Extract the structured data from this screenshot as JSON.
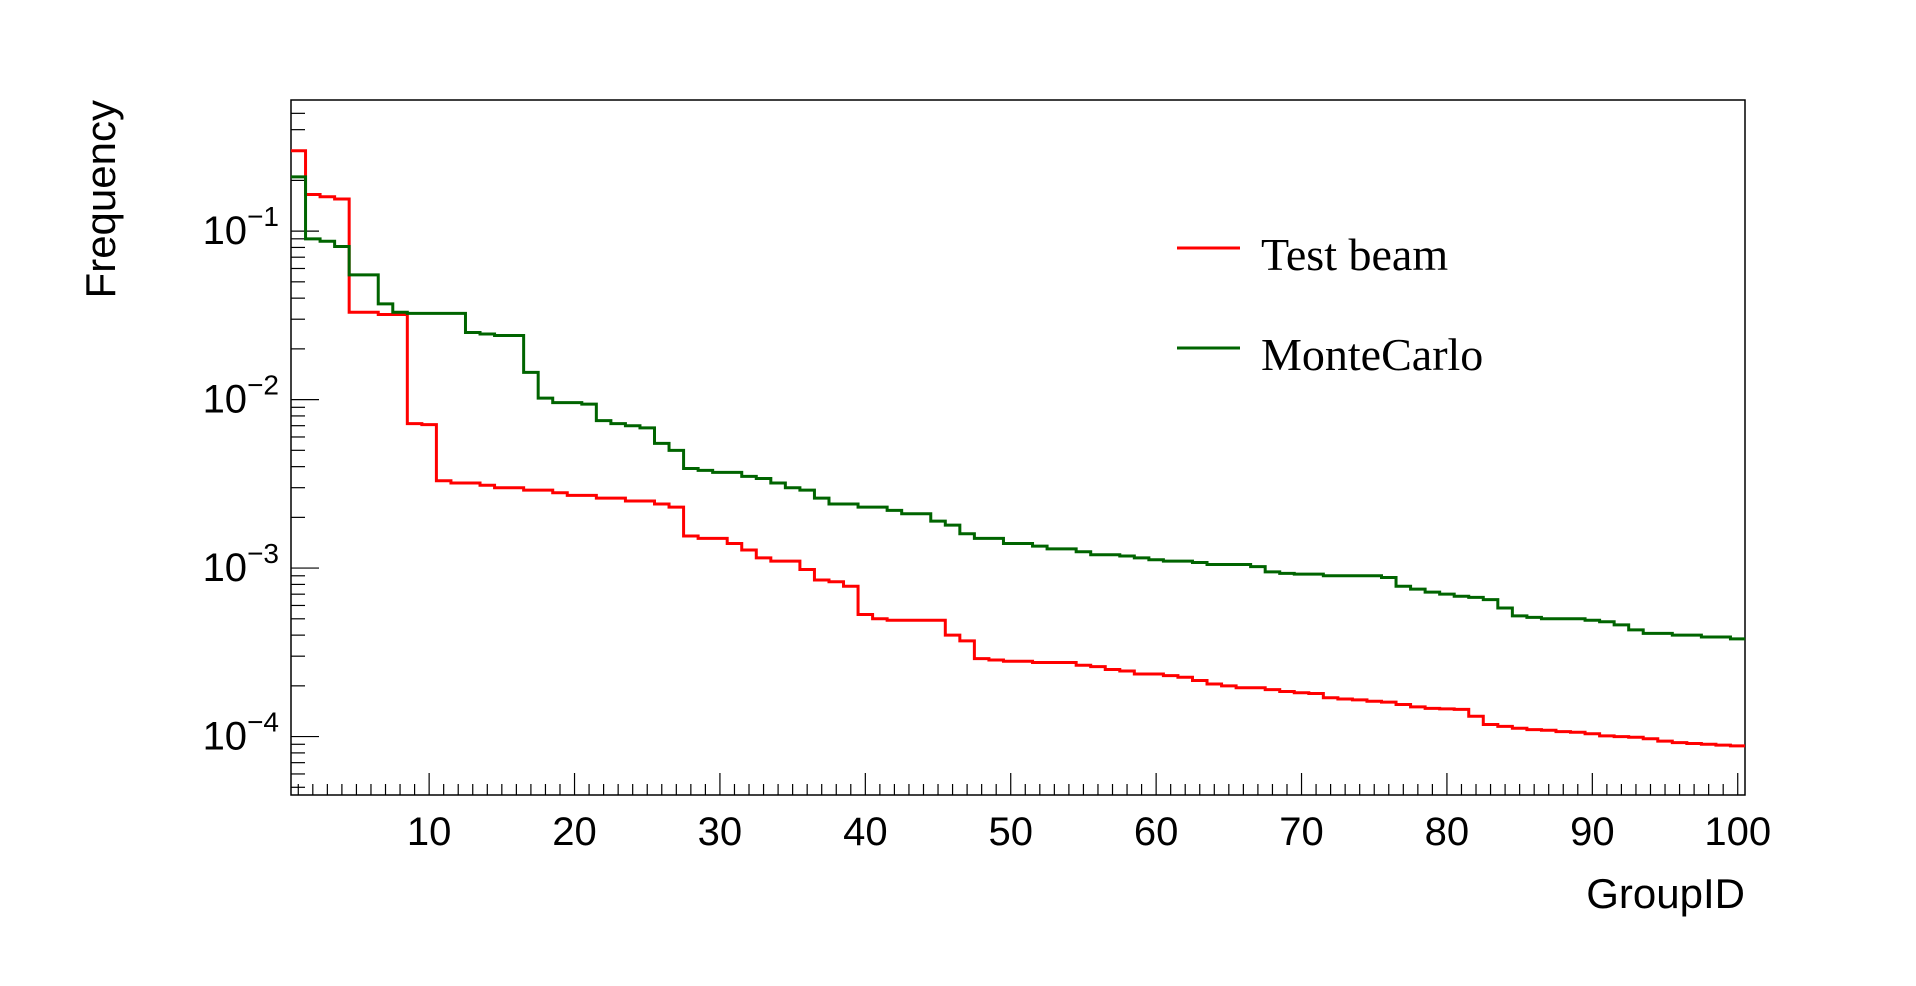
{
  "chart_data": {
    "type": "line",
    "style": "step-histogram",
    "xlabel": "GroupID",
    "ylabel": "Frequency",
    "title": "",
    "xlim": [
      0.5,
      100.5
    ],
    "ylim": [
      4.5e-05,
      0.6
    ],
    "yscale": "log",
    "grid": false,
    "legend_position": "top-right",
    "x_ticks": [
      10,
      20,
      30,
      40,
      50,
      60,
      70,
      80,
      90,
      100
    ],
    "x_tick_labels": [
      "10",
      "20",
      "30",
      "40",
      "50",
      "60",
      "70",
      "80",
      "90",
      "100"
    ],
    "y_ticks": [
      0.1,
      0.01,
      0.001,
      0.0001
    ],
    "y_tick_labels": [
      {
        "base": "10",
        "exp": "−1"
      },
      {
        "base": "10",
        "exp": "−2"
      },
      {
        "base": "10",
        "exp": "−3"
      },
      {
        "base": "10",
        "exp": "−4"
      }
    ],
    "x": [
      1,
      2,
      3,
      4,
      5,
      6,
      7,
      8,
      9,
      10,
      11,
      12,
      13,
      14,
      15,
      16,
      17,
      18,
      19,
      20,
      21,
      22,
      23,
      24,
      25,
      26,
      27,
      28,
      29,
      30,
      31,
      32,
      33,
      34,
      35,
      36,
      37,
      38,
      39,
      40,
      41,
      42,
      43,
      44,
      45,
      46,
      47,
      48,
      49,
      50,
      51,
      52,
      53,
      54,
      55,
      56,
      57,
      58,
      59,
      60,
      61,
      62,
      63,
      64,
      65,
      66,
      67,
      68,
      69,
      70,
      71,
      72,
      73,
      74,
      75,
      76,
      77,
      78,
      79,
      80,
      81,
      82,
      83,
      84,
      85,
      86,
      87,
      88,
      89,
      90,
      91,
      92,
      93,
      94,
      95,
      96,
      97,
      98,
      99,
      100
    ],
    "series": [
      {
        "name": "Test beam",
        "color": "#ff0000",
        "values": [
          0.3,
          0.165,
          0.16,
          0.155,
          0.033,
          0.033,
          0.032,
          0.032,
          0.0072,
          0.0071,
          0.0033,
          0.0032,
          0.0032,
          0.0031,
          0.003,
          0.003,
          0.0029,
          0.0029,
          0.0028,
          0.0027,
          0.0027,
          0.0026,
          0.0026,
          0.0025,
          0.0025,
          0.0024,
          0.0023,
          0.00155,
          0.0015,
          0.0015,
          0.0014,
          0.00128,
          0.00115,
          0.0011,
          0.0011,
          0.00098,
          0.00085,
          0.00083,
          0.00078,
          0.00053,
          0.0005,
          0.00049,
          0.00049,
          0.00049,
          0.00049,
          0.0004,
          0.00037,
          0.00029,
          0.000285,
          0.00028,
          0.00028,
          0.000275,
          0.000275,
          0.000275,
          0.000265,
          0.00026,
          0.00025,
          0.000245,
          0.000235,
          0.000235,
          0.00023,
          0.000225,
          0.000215,
          0.000205,
          0.0002,
          0.000195,
          0.000195,
          0.00019,
          0.000185,
          0.000182,
          0.00018,
          0.00017,
          0.000167,
          0.000165,
          0.000162,
          0.00016,
          0.000155,
          0.00015,
          0.000147,
          0.000146,
          0.000145,
          0.000132,
          0.000118,
          0.000115,
          0.000112,
          0.00011,
          0.000109,
          0.000107,
          0.000106,
          0.000104,
          0.000101,
          0.0001,
          9.9e-05,
          9.7e-05,
          9.4e-05,
          9.2e-05,
          9.1e-05,
          9e-05,
          8.9e-05,
          8.8e-05
        ]
      },
      {
        "name": "MonteCarlo",
        "color": "#006400",
        "values": [
          0.21,
          0.09,
          0.087,
          0.081,
          0.055,
          0.055,
          0.037,
          0.033,
          0.0325,
          0.0325,
          0.0325,
          0.0325,
          0.025,
          0.0245,
          0.024,
          0.024,
          0.0145,
          0.0102,
          0.0096,
          0.0096,
          0.0094,
          0.0075,
          0.0072,
          0.007,
          0.0068,
          0.0055,
          0.005,
          0.0039,
          0.0038,
          0.0037,
          0.0037,
          0.0035,
          0.0034,
          0.0032,
          0.003,
          0.0029,
          0.0026,
          0.0024,
          0.0024,
          0.0023,
          0.0023,
          0.0022,
          0.0021,
          0.0021,
          0.0019,
          0.0018,
          0.0016,
          0.0015,
          0.0015,
          0.0014,
          0.0014,
          0.00135,
          0.0013,
          0.0013,
          0.00125,
          0.0012,
          0.0012,
          0.00118,
          0.00115,
          0.00112,
          0.0011,
          0.0011,
          0.00108,
          0.00105,
          0.00105,
          0.00105,
          0.00102,
          0.00095,
          0.00093,
          0.00092,
          0.00092,
          0.0009,
          0.0009,
          0.0009,
          0.0009,
          0.00088,
          0.00078,
          0.00075,
          0.00072,
          0.0007,
          0.00068,
          0.00067,
          0.00065,
          0.00058,
          0.00052,
          0.00051,
          0.0005,
          0.0005,
          0.0005,
          0.00049,
          0.00048,
          0.00046,
          0.00043,
          0.00041,
          0.00041,
          0.0004,
          0.0004,
          0.00039,
          0.00039,
          0.00038
        ]
      }
    ]
  }
}
